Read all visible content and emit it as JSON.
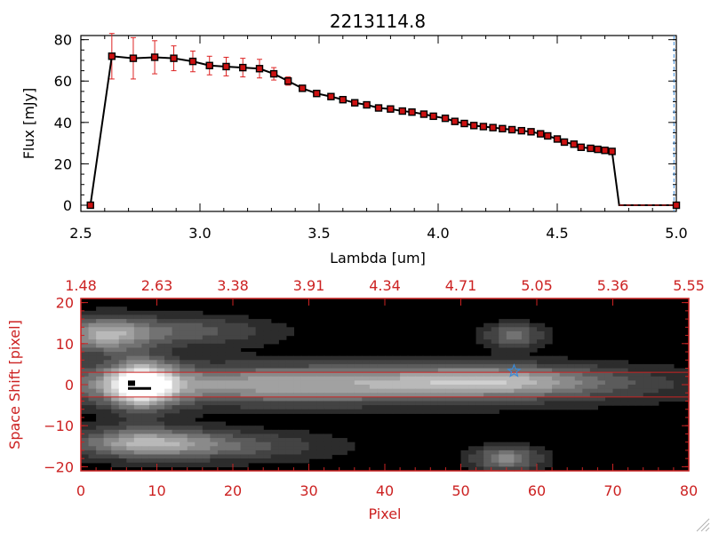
{
  "colors": {
    "axis_top": "#000000",
    "axis_bottom": "#cc2222",
    "errorbar": "#dd2222",
    "marker_fill": "#cc1111",
    "marker_edge": "#000000",
    "line": "#000000",
    "dashed_marker": "#3a8ad8",
    "star": "#3a8ad8",
    "hline": "#cc2222"
  },
  "chart_data": [
    {
      "type": "line",
      "title": "2213114.8",
      "xlabel": "Lambda [um]",
      "ylabel": "Flux [mJy]",
      "xlim": [
        2.5,
        5.0
      ],
      "ylim": [
        -3,
        82
      ],
      "x_ticks": [
        2.5,
        3.0,
        3.5,
        4.0,
        4.5,
        5.0
      ],
      "x_tick_labels": [
        "2.5",
        "3.0",
        "3.5",
        "4.0",
        "4.5",
        "5.0"
      ],
      "y_ticks": [
        0,
        20,
        40,
        60,
        80
      ],
      "y_tick_labels": [
        "0",
        "20",
        "40",
        "60",
        "80"
      ],
      "series": [
        {
          "x": [
            2.54,
            2.63,
            2.72,
            2.81,
            2.89,
            2.97,
            3.04,
            3.11,
            3.18,
            3.25,
            3.31,
            3.37,
            3.43,
            3.49,
            3.55,
            3.6,
            3.65,
            3.7,
            3.75,
            3.8,
            3.85,
            3.89,
            3.94,
            3.98,
            4.03,
            4.07,
            4.11,
            4.15,
            4.19,
            4.23,
            4.27,
            4.31,
            4.35,
            4.39,
            4.43,
            4.46,
            4.5,
            4.53,
            4.57,
            4.6,
            4.64,
            4.67,
            4.7,
            4.73,
            4.76,
            4.8,
            4.85,
            4.9,
            4.95,
            5.0
          ],
          "y": [
            0,
            72,
            71,
            71.5,
            71,
            69.5,
            67.5,
            67,
            66.5,
            66,
            63.5,
            60,
            56.5,
            54,
            52.5,
            51,
            49.5,
            48.5,
            47,
            46.5,
            45.5,
            45,
            44,
            43,
            42,
            40.5,
            39.5,
            38.5,
            38,
            37.5,
            37,
            36.5,
            36,
            35.5,
            34.5,
            33.5,
            32,
            30.5,
            29.5,
            28,
            27.5,
            27,
            26.5,
            26,
            0,
            0,
            0,
            0,
            0,
            0
          ],
          "err": [
            0,
            11,
            10,
            8,
            6,
            5,
            4.5,
            4.5,
            4.5,
            4.5,
            3,
            2,
            1,
            1,
            0.8,
            0.8,
            0.8,
            0.8,
            0.8,
            0.8,
            0.8,
            0.8,
            0.8,
            0.8,
            0.8,
            0.8,
            0.8,
            0.8,
            0.8,
            0.8,
            0.8,
            0.8,
            0.8,
            0.8,
            0.8,
            0.8,
            0.8,
            0.8,
            0.8,
            0.8,
            0.8,
            0.8,
            0.8,
            0.8,
            0,
            0,
            0,
            0,
            0,
            0
          ]
        }
      ],
      "vline_x": 4.99
    },
    {
      "type": "heatmap",
      "xlabel": "Pixel",
      "ylabel": "Space Shift [pixel]",
      "xlim": [
        0,
        80
      ],
      "ylim": [
        -21,
        21
      ],
      "x_ticks": [
        0,
        10,
        20,
        30,
        40,
        50,
        60,
        70,
        80
      ],
      "x_tick_labels": [
        "0",
        "10",
        "20",
        "30",
        "40",
        "50",
        "60",
        "70",
        "80"
      ],
      "y_ticks": [
        -20,
        -10,
        0,
        10,
        20
      ],
      "y_tick_labels": [
        "−20",
        "−10",
        "0",
        "10",
        "20"
      ],
      "top_axis_positions": [
        0,
        10,
        20,
        30,
        40,
        50,
        60,
        70,
        80
      ],
      "top_axis_labels": [
        "1.48",
        "2.63",
        "3.38",
        "3.91",
        "4.34",
        "4.71",
        "5.05",
        "5.36",
        "5.55"
      ],
      "hlines": [
        3,
        -3
      ],
      "star_marker": [
        57,
        3.3
      ],
      "blobs": [
        {
          "x": 8,
          "y": 0,
          "sx": 3,
          "sy": 4,
          "amp": 0.9
        },
        {
          "x": 28,
          "y": 0,
          "sx": 28,
          "sy": 3.3,
          "amp": 0.62
        },
        {
          "x": 55,
          "y": 1,
          "sx": 10,
          "sy": 2.5,
          "amp": 0.38
        },
        {
          "x": 3,
          "y": 12,
          "sx": 4,
          "sy": 3,
          "amp": 0.55
        },
        {
          "x": 13,
          "y": 13,
          "sx": 8,
          "sy": 2.5,
          "amp": 0.32
        },
        {
          "x": 8,
          "y": -14,
          "sx": 6,
          "sy": 2.5,
          "amp": 0.52
        },
        {
          "x": 18,
          "y": -15,
          "sx": 10,
          "sy": 2.5,
          "amp": 0.32
        },
        {
          "x": 56,
          "y": -18,
          "sx": 3,
          "sy": 2,
          "amp": 0.5
        },
        {
          "x": 57,
          "y": 12,
          "sx": 2.5,
          "sy": 2,
          "amp": 0.42
        }
      ]
    }
  ]
}
